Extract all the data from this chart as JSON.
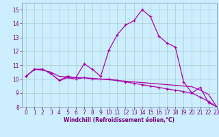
{
  "title": "",
  "xlabel": "Windchill (Refroidissement éolien,°C)",
  "background_color": "#cceeff",
  "grid_color": "#aacccc",
  "line_color": "#aa00aa",
  "x_data": [
    0,
    1,
    2,
    3,
    4,
    5,
    6,
    7,
    8,
    9,
    10,
    11,
    12,
    13,
    14,
    15,
    16,
    17,
    18,
    19,
    20,
    21,
    22,
    23
  ],
  "line1_y": [
    10.2,
    10.7,
    10.7,
    10.4,
    9.9,
    10.2,
    10.1,
    11.1,
    10.7,
    10.2,
    12.1,
    13.2,
    13.9,
    14.2,
    15.0,
    14.5,
    13.1,
    12.6,
    12.3,
    9.8,
    9.0,
    9.4,
    8.3,
    8.0
  ],
  "line2_y": [
    10.2,
    10.7,
    10.7,
    10.4,
    9.9,
    10.1,
    10.0,
    10.1,
    10.0,
    10.0,
    10.0,
    9.9,
    9.8,
    9.7,
    9.6,
    9.5,
    9.4,
    9.3,
    9.2,
    9.1,
    9.0,
    8.7,
    8.4,
    8.0
  ],
  "line3_y": [
    10.2,
    10.7,
    10.65,
    10.5,
    10.2,
    10.15,
    10.1,
    10.1,
    10.05,
    10.0,
    9.95,
    9.9,
    9.85,
    9.8,
    9.75,
    9.7,
    9.65,
    9.6,
    9.55,
    9.5,
    9.45,
    9.2,
    8.9,
    8.0
  ],
  "ylim": [
    8,
    15.5
  ],
  "xlim": [
    -0.5,
    23
  ],
  "yticks": [
    8,
    9,
    10,
    11,
    12,
    13,
    14,
    15
  ],
  "xticks": [
    0,
    1,
    2,
    3,
    4,
    5,
    6,
    7,
    8,
    9,
    10,
    11,
    12,
    13,
    14,
    15,
    16,
    17,
    18,
    19,
    20,
    21,
    22,
    23
  ],
  "tick_fontsize": 5.5,
  "xlabel_fontsize": 5.5
}
